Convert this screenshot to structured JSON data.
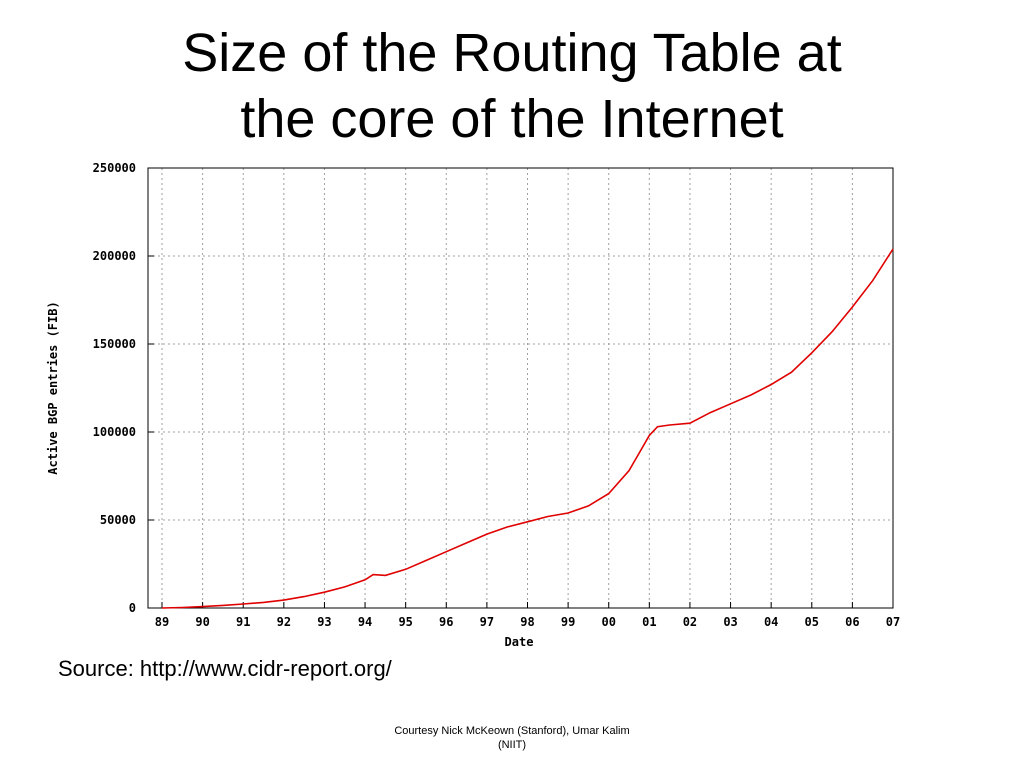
{
  "slide": {
    "title_line1": "Size of the Routing Table at",
    "title_line2": "the core of the Internet",
    "source": "Source: http://www.cidr-report.org/",
    "courtesy_line1": "Courtesy Nick McKeown (Stanford), Umar Kalim",
    "courtesy_line2": "(NIIT)"
  },
  "chart_data": {
    "type": "line",
    "title": "",
    "xlabel": "Date",
    "ylabel": "Active BGP entries (FIB)",
    "xlim": [
      1989,
      2007
    ],
    "ylim": [
      0,
      250000
    ],
    "y_ticks": [
      "0",
      "50000",
      "100000",
      "150000",
      "200000",
      "250000"
    ],
    "x_ticks": [
      "89",
      "90",
      "91",
      "92",
      "93",
      "94",
      "95",
      "96",
      "97",
      "98",
      "99",
      "00",
      "01",
      "02",
      "03",
      "04",
      "05",
      "06",
      "07"
    ],
    "grid": true,
    "line_color": "#e00000",
    "series": [
      {
        "name": "",
        "x": [
          1989.0,
          1989.5,
          1990.0,
          1990.5,
          1991.0,
          1991.5,
          1992.0,
          1992.5,
          1993.0,
          1993.5,
          1994.0,
          1994.2,
          1994.5,
          1995.0,
          1995.5,
          1996.0,
          1996.5,
          1997.0,
          1997.5,
          1998.0,
          1998.5,
          1999.0,
          1999.5,
          2000.0,
          2000.5,
          2001.0,
          2001.2,
          2001.5,
          2002.0,
          2002.5,
          2003.0,
          2003.5,
          2004.0,
          2004.5,
          2005.0,
          2005.5,
          2006.0,
          2006.5,
          2007.0
        ],
        "values": [
          0,
          300,
          800,
          1500,
          2300,
          3200,
          4500,
          6500,
          9000,
          12000,
          16000,
          19000,
          18500,
          22000,
          27000,
          32000,
          37000,
          42000,
          46000,
          49000,
          52000,
          54000,
          58000,
          65000,
          78000,
          98000,
          103000,
          104000,
          105000,
          111000,
          116000,
          121000,
          127000,
          134000,
          145000,
          157000,
          171000,
          186000,
          204000
        ]
      }
    ]
  }
}
